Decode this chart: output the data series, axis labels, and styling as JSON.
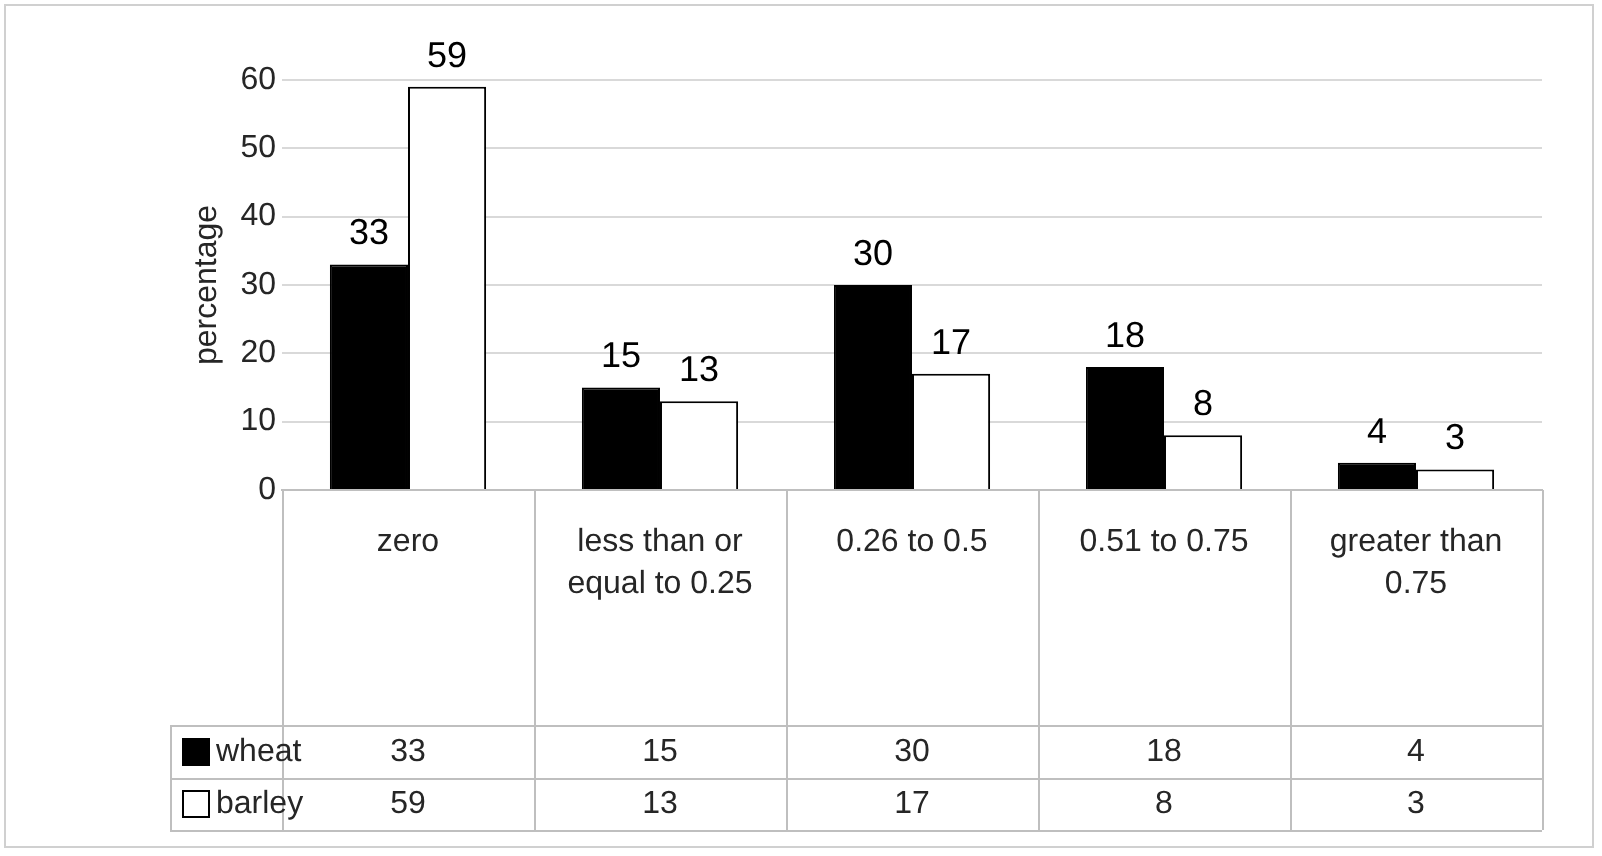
{
  "chart_data": {
    "type": "bar",
    "categories": [
      "zero",
      "less than or equal to 0.25",
      "0.26 to 0.5",
      "0.51 to 0.75",
      "greater than 0.75"
    ],
    "series": [
      {
        "name": "wheat",
        "color": "#000000",
        "values": [
          33,
          15,
          30,
          18,
          4
        ],
        "value_labels": [
          "33",
          "15",
          "30",
          "18",
          "4"
        ]
      },
      {
        "name": "barley",
        "color": "#ffffff",
        "values": [
          59,
          13,
          17,
          8,
          3
        ],
        "value_labels": [
          "59",
          "13",
          "17",
          "8",
          "3"
        ]
      }
    ],
    "ylabel": "percentage",
    "ylim": [
      0,
      60
    ],
    "yticks": [
      0,
      10,
      20,
      30,
      40,
      50,
      60
    ],
    "grid": "y",
    "legend": "bottom"
  }
}
